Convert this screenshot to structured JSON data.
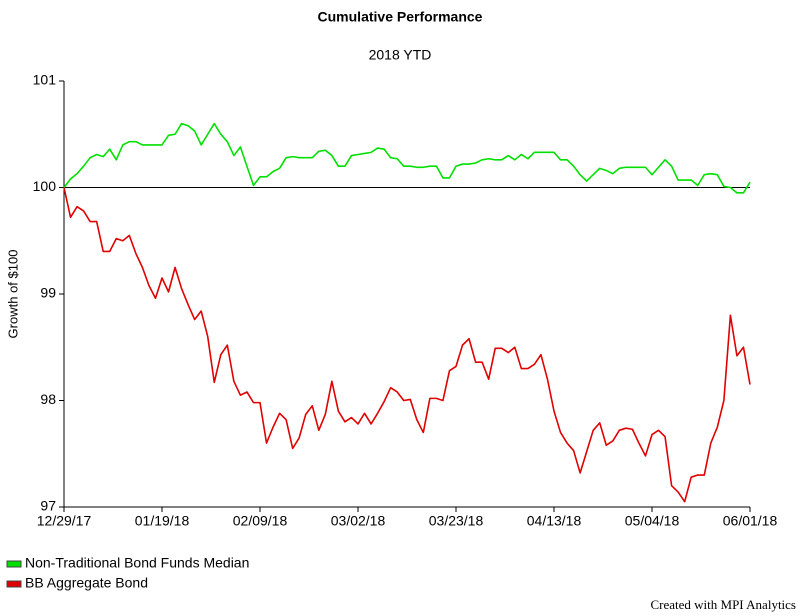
{
  "chart_data": {
    "type": "line",
    "title": "Cumulative Performance",
    "subtitle": "2018 YTD",
    "y_label": "Growth of $100",
    "footer": "Created with MPI Analytics",
    "categories": [
      "12/29/17",
      null,
      null,
      null,
      null,
      null,
      null,
      null,
      null,
      null,
      null,
      null,
      null,
      null,
      null,
      "01/19/18",
      null,
      null,
      null,
      null,
      null,
      null,
      null,
      null,
      null,
      null,
      null,
      null,
      null,
      null,
      "02/09/18",
      null,
      null,
      null,
      null,
      null,
      null,
      null,
      null,
      null,
      null,
      null,
      null,
      null,
      null,
      "03/02/18",
      null,
      null,
      null,
      null,
      null,
      null,
      null,
      null,
      null,
      null,
      null,
      null,
      null,
      null,
      "03/23/18",
      null,
      null,
      null,
      null,
      null,
      null,
      null,
      null,
      null,
      null,
      null,
      null,
      null,
      null,
      "04/13/18",
      null,
      null,
      null,
      null,
      null,
      null,
      null,
      null,
      null,
      null,
      null,
      null,
      null,
      null,
      "05/04/18",
      null,
      null,
      null,
      null,
      null,
      null,
      null,
      null,
      null,
      null,
      null,
      null,
      null,
      null,
      "06/01/18"
    ],
    "series": [
      {
        "name": "Non-Traditional Bond Funds Median",
        "color": "#00e000",
        "values": [
          100,
          100.08,
          100.13,
          100.2,
          100.28,
          100.31,
          100.29,
          100.36,
          100.26,
          100.4,
          100.43,
          100.43,
          100.4,
          100.4,
          100.4,
          100.4,
          100.49,
          100.5,
          100.6,
          100.58,
          100.53,
          100.4,
          100.5,
          100.6,
          100.5,
          100.43,
          100.3,
          100.38,
          100.2,
          100.02,
          100.1,
          100.1,
          100.15,
          100.18,
          100.28,
          100.29,
          100.28,
          100.28,
          100.28,
          100.34,
          100.35,
          100.3,
          100.2,
          100.2,
          100.3,
          100.31,
          100.32,
          100.33,
          100.37,
          100.36,
          100.28,
          100.27,
          100.2,
          100.2,
          100.19,
          100.19,
          100.2,
          100.2,
          100.09,
          100.09,
          100.2,
          100.22,
          100.22,
          100.23,
          100.26,
          100.27,
          100.26,
          100.26,
          100.3,
          100.26,
          100.31,
          100.27,
          100.33,
          100.33,
          100.33,
          100.33,
          100.26,
          100.26,
          100.2,
          100.12,
          100.06,
          100.12,
          100.18,
          100.16,
          100.13,
          100.18,
          100.19,
          100.19,
          100.19,
          100.19,
          100.12,
          100.19,
          100.26,
          100.2,
          100.07,
          100.07,
          100.07,
          100.02,
          100.12,
          100.13,
          100.12,
          100.01,
          100,
          99.95,
          99.95,
          100.05
        ]
      },
      {
        "name": "BB Aggregate Bond",
        "color": "#e00000",
        "values": [
          100,
          99.72,
          99.82,
          99.78,
          99.68,
          99.68,
          99.4,
          99.4,
          99.52,
          99.5,
          99.55,
          99.38,
          99.25,
          99.08,
          98.96,
          99.15,
          99.02,
          99.25,
          99.05,
          98.9,
          98.76,
          98.84,
          98.6,
          98.17,
          98.43,
          98.52,
          98.18,
          98.05,
          98.08,
          97.98,
          97.98,
          97.6,
          97.75,
          97.88,
          97.82,
          97.55,
          97.65,
          97.87,
          97.95,
          97.72,
          97.87,
          98.18,
          97.9,
          97.8,
          97.84,
          97.78,
          97.88,
          97.78,
          97.88,
          97.99,
          98.12,
          98.08,
          98.0,
          98.01,
          97.82,
          97.7,
          98.02,
          98.02,
          98.0,
          98.28,
          98.32,
          98.52,
          98.58,
          98.36,
          98.36,
          98.2,
          98.49,
          98.49,
          98.45,
          98.5,
          98.3,
          98.3,
          98.34,
          98.43,
          98.2,
          97.9,
          97.7,
          97.6,
          97.53,
          97.32,
          97.52,
          97.72,
          97.79,
          97.58,
          97.62,
          97.72,
          97.74,
          97.73,
          97.6,
          97.48,
          97.68,
          97.72,
          97.66,
          97.2,
          97.14,
          97.05,
          97.28,
          97.3,
          97.3,
          97.6,
          97.75,
          98.0,
          98.8,
          98.42,
          98.5,
          98.15
        ]
      }
    ],
    "reference_line": 100,
    "ylim": [
      97,
      101
    ],
    "yticks": [
      97,
      98,
      99,
      100,
      101
    ],
    "grid": false,
    "legend": "bottom-left"
  }
}
